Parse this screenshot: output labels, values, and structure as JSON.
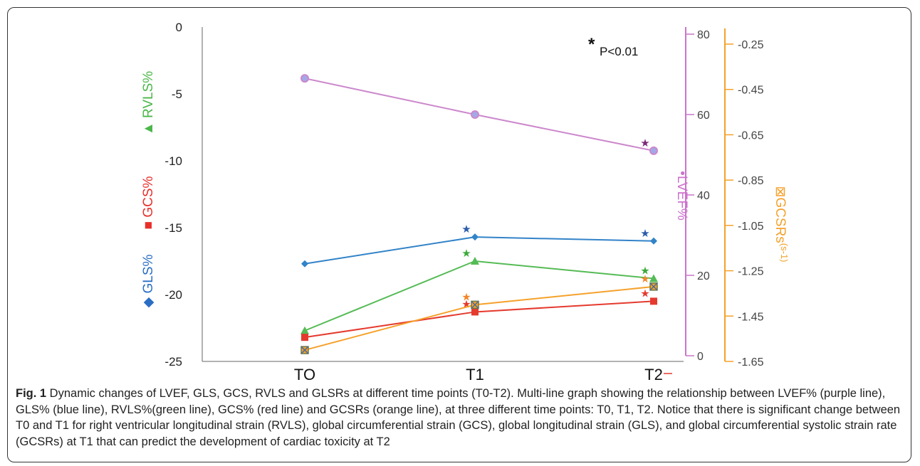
{
  "chart_data": {
    "type": "line",
    "categories": [
      "TO",
      "T1",
      "T2"
    ],
    "annotation": {
      "star": "*",
      "text": "P<0.01"
    },
    "left_axis": {
      "ylim": [
        -25,
        0
      ],
      "ticks": [
        "0",
        "-5",
        "-10",
        "-15",
        "-20",
        "-25"
      ],
      "labels": [
        {
          "symbol": "▲",
          "text": "RVLS%",
          "color": "#4bb749"
        },
        {
          "symbol": "■",
          "text": "GCS%",
          "color": "#e8302b"
        },
        {
          "symbol": "◆",
          "text": "GLS%",
          "color": "#2a6ec4"
        }
      ]
    },
    "right_axis_1": {
      "ylim": [
        -5,
        82
      ],
      "ticks": [
        "80",
        "60",
        "40",
        "20",
        "0"
      ],
      "label": {
        "symbol": "•",
        "text": "LVEF%"
      },
      "color": "#cc72cc"
    },
    "right_axis_2": {
      "ylim": [
        -1.65,
        -0.15
      ],
      "ticks": [
        "-0.25",
        "-0.45",
        "-0.65",
        "-0.85",
        "-1.05",
        "-1.25",
        "-1.45",
        "-1.65"
      ],
      "label": {
        "symbol": "⊠",
        "text": "GCSRs",
        "unit": "(s-1)"
      },
      "color": "#f5a12a"
    },
    "series": [
      {
        "name": "LVEF%",
        "axis": "right1",
        "marker": "circle",
        "color": "#cc88cc",
        "marker_fill": "#a3a8e6",
        "values": [
          69,
          60,
          51
        ],
        "sig": [
          false,
          false,
          true
        ],
        "star_color": "#7a2a7a"
      },
      {
        "name": "GLS%",
        "axis": "left",
        "marker": "diamond",
        "color": "#3283c8",
        "values": [
          -17.7,
          -15.7,
          -16.0
        ],
        "sig": [
          false,
          true,
          true
        ],
        "star_color": "#2a5caa"
      },
      {
        "name": "RVLS%",
        "axis": "left",
        "marker": "triangle",
        "color": "#55bb55",
        "values": [
          -22.7,
          -17.5,
          -18.8
        ],
        "sig": [
          false,
          true,
          true
        ],
        "star_color": "#3aaa3a"
      },
      {
        "name": "GCS%",
        "axis": "left",
        "marker": "square",
        "color": "#e53a2e",
        "values": [
          -23.2,
          -21.3,
          -20.5
        ],
        "sig": [
          false,
          true,
          true
        ],
        "star_color": "#e53a2e"
      },
      {
        "name": "GCSRs",
        "axis": "right2",
        "marker": "xbox",
        "color": "#f5a12a",
        "values": [
          -1.6,
          -1.4,
          -1.32
        ],
        "sig": [
          false,
          true,
          true
        ],
        "star_color": "#f0882a"
      }
    ]
  },
  "caption": {
    "label": "Fig. 1",
    "text": " Dynamic changes of LVEF, GLS, GCS, RVLS and GLSRs at different time points (T0-T2). Multi-line graph showing the relationship between LVEF% (purple line), GLS% (blue line), RVLS%(green line), GCS% (red line) and GCSRs (orange line), at three different time points: T0, T1, T2. Notice that there is significant change between T0 and T1 for right ventricular longitudinal strain (RVLS), global circumferential strain (GCS), global longitudinal strain (GLS), and global circumferential systolic strain rate (GCSRs) at T1 that can predict the development of cardiac toxicity at T2"
  }
}
